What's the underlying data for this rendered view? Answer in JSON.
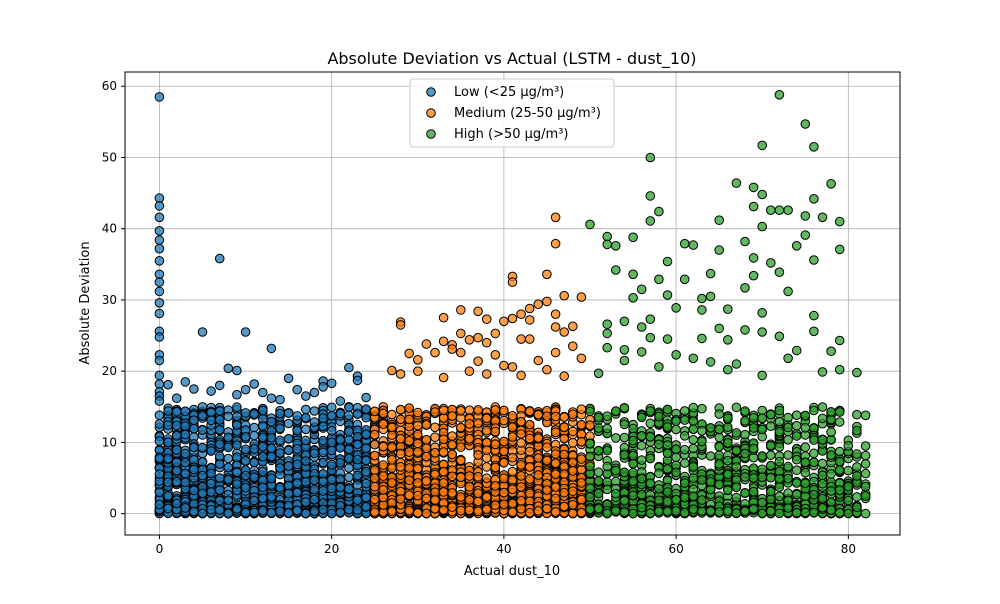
{
  "chart_data": {
    "type": "scatter",
    "title": "Absolute Deviation vs Actual (LSTM - dust_10)",
    "xlabel": "Actual dust_10",
    "ylabel": "Absolute Deviation",
    "xlim": [
      -4,
      86
    ],
    "ylim": [
      -3,
      62
    ],
    "xticks": [
      0,
      20,
      40,
      60,
      80
    ],
    "yticks": [
      0,
      10,
      20,
      30,
      40,
      50,
      60
    ],
    "grid": true,
    "legend_position": "upper-center",
    "series": [
      {
        "name": "Low (<25 µg/m³)",
        "color": "#1f77b4",
        "x_range": [
          0,
          24.9
        ],
        "dense_band_max": 15,
        "dense_count": 1400,
        "outliers": [
          [
            0,
            58.5
          ],
          [
            0,
            44.3
          ],
          [
            0,
            43.2
          ],
          [
            0,
            41.6
          ],
          [
            0,
            39.7
          ],
          [
            0,
            38.4
          ],
          [
            0,
            37.2
          ],
          [
            0,
            35.5
          ],
          [
            0,
            33.6
          ],
          [
            0,
            32.5
          ],
          [
            0,
            31.2
          ],
          [
            0,
            29.6
          ],
          [
            0,
            28.1
          ],
          [
            0,
            25.6
          ],
          [
            0,
            24.8
          ],
          [
            0,
            22.3
          ],
          [
            0,
            21.5
          ],
          [
            0,
            19.4
          ],
          [
            0,
            18.2
          ],
          [
            0,
            17.1
          ],
          [
            0,
            16.5
          ],
          [
            0,
            15.8
          ],
          [
            0,
            12.6
          ],
          [
            0,
            10.8
          ],
          [
            0,
            10.2
          ],
          [
            7,
            35.8
          ],
          [
            5,
            25.5
          ],
          [
            10,
            25.5
          ],
          [
            13,
            23.2
          ],
          [
            8,
            20.4
          ],
          [
            9,
            20.1
          ],
          [
            22,
            20.5
          ],
          [
            23,
            19.3
          ],
          [
            23,
            18.7
          ],
          [
            19,
            18.6
          ],
          [
            20,
            18.3
          ],
          [
            11,
            18.2
          ],
          [
            3,
            18.5
          ],
          [
            1,
            18.1
          ],
          [
            4,
            17.5
          ],
          [
            6,
            17.2
          ],
          [
            12,
            17.0
          ],
          [
            16,
            17.4
          ],
          [
            18,
            17.0
          ],
          [
            17,
            16.5
          ],
          [
            2,
            16.2
          ],
          [
            24,
            16.3
          ],
          [
            14,
            16.0
          ],
          [
            21,
            15.8
          ],
          [
            15,
            19.0
          ],
          [
            19,
            17.8
          ],
          [
            7,
            18.0
          ],
          [
            9,
            16.7
          ],
          [
            10,
            17.4
          ],
          [
            13,
            16.2
          ]
        ]
      },
      {
        "name": "Medium (25-50 µg/m³)",
        "color": "#ff7f0e",
        "x_range": [
          25,
          49.9
        ],
        "dense_band_max": 15,
        "dense_count": 1500,
        "outliers": [
          [
            46,
            41.6
          ],
          [
            46,
            37.9
          ],
          [
            45,
            33.6
          ],
          [
            41,
            33.3
          ],
          [
            41,
            32.5
          ],
          [
            47,
            30.6
          ],
          [
            49,
            30.4
          ],
          [
            44,
            29.4
          ],
          [
            45,
            29.8
          ],
          [
            43,
            28.8
          ],
          [
            35,
            28.6
          ],
          [
            37,
            28.4
          ],
          [
            42,
            28.0
          ],
          [
            46,
            28.0
          ],
          [
            41,
            27.4
          ],
          [
            43,
            27.2
          ],
          [
            40,
            27.0
          ],
          [
            33,
            27.5
          ],
          [
            38,
            27.3
          ],
          [
            28,
            26.9
          ],
          [
            28,
            26.5
          ],
          [
            48,
            26.3
          ],
          [
            46,
            26.2
          ],
          [
            35,
            25.3
          ],
          [
            37,
            24.7
          ],
          [
            47,
            25.5
          ],
          [
            39,
            25.3
          ],
          [
            42,
            24.5
          ],
          [
            43,
            24.5
          ],
          [
            33,
            24.2
          ],
          [
            36,
            24.4
          ],
          [
            34,
            23.7
          ],
          [
            38,
            24.0
          ],
          [
            31,
            23.8
          ],
          [
            34,
            23.1
          ],
          [
            32,
            22.6
          ],
          [
            35,
            22.6
          ],
          [
            39,
            22.3
          ],
          [
            29,
            22.5
          ],
          [
            30,
            21.6
          ],
          [
            44,
            21.5
          ],
          [
            46,
            22.6
          ],
          [
            48,
            23.5
          ],
          [
            49,
            21.8
          ],
          [
            37,
            21.4
          ],
          [
            40,
            20.8
          ],
          [
            41,
            20.6
          ],
          [
            45,
            20.2
          ],
          [
            27,
            20.1
          ],
          [
            30,
            20.0
          ],
          [
            36,
            20.0
          ],
          [
            38,
            19.6
          ],
          [
            42,
            19.4
          ],
          [
            47,
            19.3
          ],
          [
            33,
            19.1
          ],
          [
            28,
            19.6
          ]
        ]
      },
      {
        "name": "High (>50 µg/m³)",
        "color": "#2ca02c",
        "x_range": [
          50,
          82
        ],
        "dense_band_max": 15,
        "dense_count": 1100,
        "outliers": [
          [
            72,
            58.8
          ],
          [
            75,
            54.7
          ],
          [
            57,
            50.0
          ],
          [
            76,
            51.5
          ],
          [
            70,
            51.7
          ],
          [
            67,
            46.4
          ],
          [
            69,
            45.8
          ],
          [
            70,
            44.8
          ],
          [
            78,
            46.3
          ],
          [
            57,
            44.6
          ],
          [
            76,
            44.2
          ],
          [
            58,
            42.4
          ],
          [
            69,
            43.1
          ],
          [
            71,
            42.6
          ],
          [
            72,
            42.6
          ],
          [
            73,
            42.6
          ],
          [
            75,
            41.8
          ],
          [
            77,
            41.6
          ],
          [
            79,
            41.0
          ],
          [
            65,
            41.2
          ],
          [
            57,
            41.1
          ],
          [
            50,
            40.6
          ],
          [
            70,
            40.3
          ],
          [
            75,
            39.1
          ],
          [
            52,
            38.9
          ],
          [
            55,
            38.8
          ],
          [
            61,
            37.9
          ],
          [
            52,
            37.8
          ],
          [
            53,
            37.6
          ],
          [
            62,
            37.7
          ],
          [
            65,
            37.0
          ],
          [
            68,
            38.2
          ],
          [
            79,
            37.1
          ],
          [
            74,
            37.6
          ],
          [
            69,
            35.9
          ],
          [
            71,
            35.2
          ],
          [
            76,
            35.6
          ],
          [
            64,
            33.7
          ],
          [
            59,
            35.4
          ],
          [
            53,
            34.2
          ],
          [
            55,
            33.6
          ],
          [
            69,
            33.4
          ],
          [
            72,
            33.9
          ],
          [
            58,
            32.9
          ],
          [
            61,
            32.9
          ],
          [
            64,
            30.5
          ],
          [
            68,
            31.7
          ],
          [
            73,
            31.2
          ],
          [
            59,
            30.7
          ],
          [
            56,
            31.5
          ],
          [
            55,
            30.3
          ],
          [
            63,
            30.2
          ],
          [
            60,
            28.9
          ],
          [
            63,
            28.6
          ],
          [
            66,
            28.7
          ],
          [
            70,
            28.2
          ],
          [
            76,
            27.8
          ],
          [
            57,
            27.3
          ],
          [
            54,
            27.0
          ],
          [
            52,
            26.6
          ],
          [
            56,
            26.2
          ],
          [
            65,
            26.0
          ],
          [
            68,
            25.8
          ],
          [
            70,
            25.5
          ],
          [
            72,
            24.9
          ],
          [
            76,
            25.6
          ],
          [
            52,
            25.3
          ],
          [
            57,
            24.7
          ],
          [
            59,
            24.5
          ],
          [
            63,
            24.6
          ],
          [
            66,
            24.4
          ],
          [
            79,
            24.3
          ],
          [
            74,
            22.9
          ],
          [
            78,
            22.8
          ],
          [
            52,
            23.3
          ],
          [
            54,
            23.0
          ],
          [
            56,
            22.7
          ],
          [
            60,
            22.3
          ],
          [
            62,
            21.8
          ],
          [
            64,
            21.3
          ],
          [
            67,
            21.0
          ],
          [
            73,
            21.8
          ],
          [
            81,
            19.8
          ],
          [
            54,
            21.5
          ],
          [
            58,
            20.6
          ],
          [
            66,
            20.2
          ],
          [
            70,
            19.4
          ],
          [
            77,
            19.9
          ],
          [
            79,
            20.2
          ],
          [
            51,
            19.7
          ],
          [
            82,
            13.8
          ]
        ]
      }
    ]
  }
}
